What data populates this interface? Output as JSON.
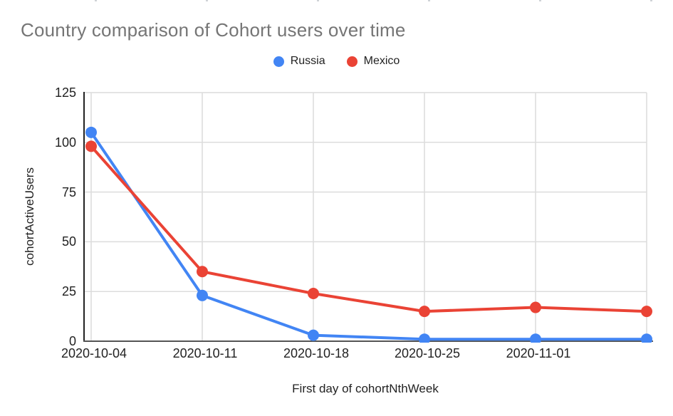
{
  "chart_data": {
    "type": "line",
    "title": "Country comparison of Cohort users over time",
    "xlabel": "First day of cohortNthWeek",
    "ylabel": "cohortActiveUsers",
    "x_tick_labels": [
      "2020-10-04",
      "2020-10-11",
      "2020-10-18",
      "2020-10-25",
      "2020-11-01",
      ""
    ],
    "y_ticks": [
      0,
      25,
      50,
      75,
      100,
      125
    ],
    "ylim": [
      0,
      125
    ],
    "grid": true,
    "legend_position": "top",
    "series": [
      {
        "name": "Russia",
        "color": "#4285F4",
        "values": [
          105,
          23,
          3,
          1,
          1,
          1
        ]
      },
      {
        "name": "Mexico",
        "color": "#EA4335",
        "values": [
          98,
          35,
          24,
          15,
          17,
          15
        ]
      }
    ]
  },
  "colors": {
    "title_text": "#757575",
    "tick_text": "#222222",
    "axis_title_text": "#222222",
    "gridline": "#DCDCDC",
    "y_axis_line": "#222222",
    "x_axis_line": "#555555",
    "background": "#FFFFFF"
  }
}
